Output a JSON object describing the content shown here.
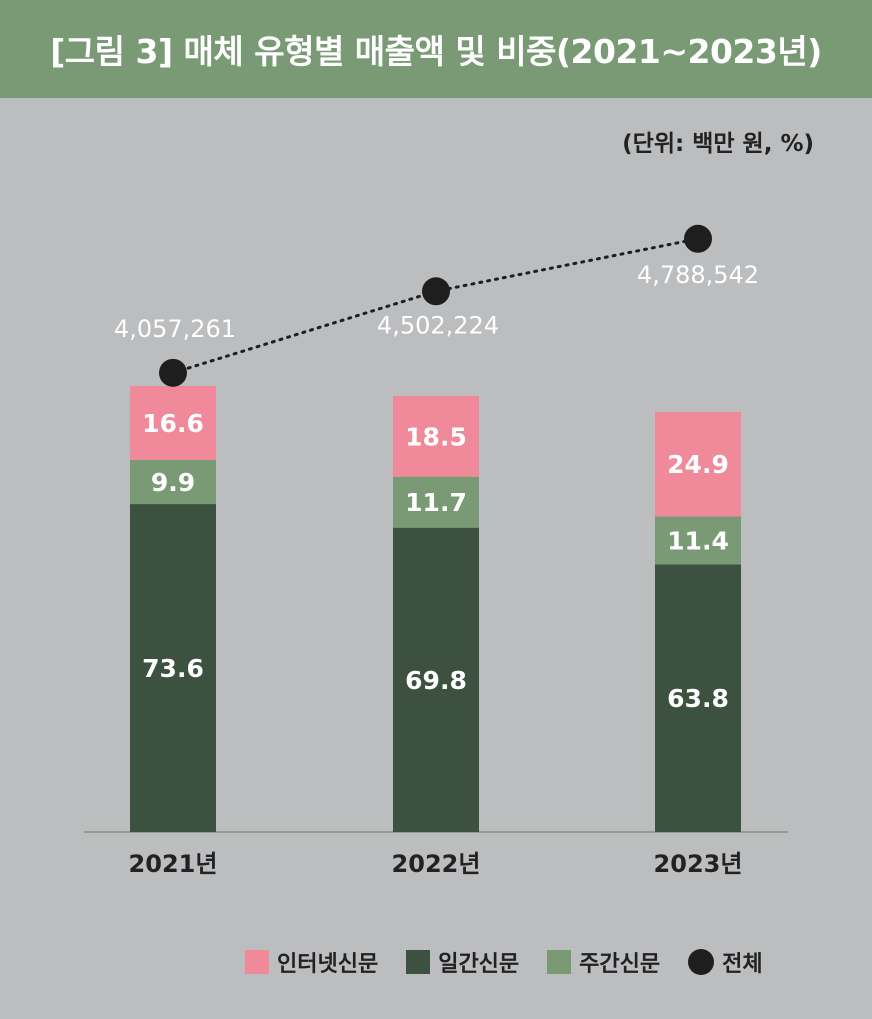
{
  "header": {
    "title": "[그림 3] 매체 유형별 매출액 및 비중(2021~2023년)"
  },
  "unit_label": "(단위: 백만 원, %)",
  "colors": {
    "internet": "#f0899a",
    "weekly": "#7a9a76",
    "daily": "#3c5140",
    "total": "#1e1e1e",
    "header_bg": "#7a9a76",
    "background": "#bcbdbf"
  },
  "legend": {
    "items": [
      {
        "label": "인터넷신문",
        "color": "#f0899a",
        "shape": "square"
      },
      {
        "label": "일간신문",
        "color": "#3c5140",
        "shape": "square"
      },
      {
        "label": "주간신문",
        "color": "#7a9a76",
        "shape": "square"
      },
      {
        "label": "전체",
        "color": "#1e1e1e",
        "shape": "circle"
      }
    ]
  },
  "chart_data": {
    "type": "bar",
    "stacked": true,
    "title": "[그림 3] 매체 유형별 매출액 및 비중(2021~2023년)",
    "categories": [
      "2021년",
      "2022년",
      "2023년"
    ],
    "series": [
      {
        "name": "일간신문",
        "values": [
          73.6,
          69.8,
          63.8
        ],
        "labels": [
          "73.6",
          "69.8",
          "63.8"
        ],
        "color": "#3c5140"
      },
      {
        "name": "주간신문",
        "values": [
          9.9,
          11.7,
          11.4
        ],
        "labels": [
          "9.9",
          "11.7",
          "11.4"
        ],
        "color": "#7a9a76"
      },
      {
        "name": "인터넷신문",
        "values": [
          16.6,
          18.5,
          24.9
        ],
        "labels": [
          "16.6",
          "18.5",
          "24.9"
        ],
        "color": "#f0899a"
      }
    ],
    "line_series": {
      "name": "전체",
      "values": [
        4057261,
        4502224,
        4788542
      ],
      "labels": [
        "4,057,261",
        "4,502,224",
        "4,788,542"
      ],
      "style": "dotted",
      "color": "#1e1e1e"
    },
    "unit": "(단위: 백만 원, %)",
    "legend_position": "bottom-right"
  }
}
